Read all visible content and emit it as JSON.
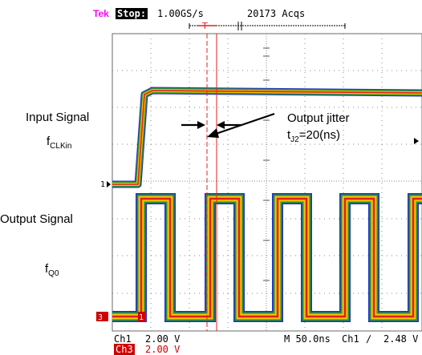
{
  "header": {
    "brand": "Tek",
    "state": "Stop:",
    "sample_rate": "1.00GS/s",
    "acquisitions": "20173 Acqs",
    "trigger_marker": "T"
  },
  "labels": {
    "input_signal": "Input Signal",
    "input_freq_main": "f",
    "input_freq_sub": "CLKin",
    "output_signal": "Output Signal",
    "output_freq_main": "f",
    "output_freq_sub": "Q0",
    "jitter_title": "Output jitter",
    "jitter_prefix": "t",
    "jitter_sub": "J2",
    "jitter_value": "=20(ns)"
  },
  "markers": {
    "ch1_ground": "1",
    "ch3_ground": "3",
    "ch1_level": "1"
  },
  "footer": {
    "ch1_name": "Ch1",
    "ch1_scale": "2.00 V",
    "ch3_name": "Ch3",
    "ch3_scale": "2.00 V",
    "timebase": "M 50.0ns",
    "trigger_source": "Ch1",
    "trigger_slope": "∕",
    "trigger_level": "2.48 V"
  },
  "colors": {
    "brand": "#ff00ff",
    "grid": "#8a8a8a",
    "trace_core": "#e02020",
    "trace_mid": "#f2c400",
    "trace_outer": "#2a8f3a",
    "trace_edge": "#2030c8",
    "cursor": "#e02020",
    "ch3_badge": "#d10000"
  }
}
